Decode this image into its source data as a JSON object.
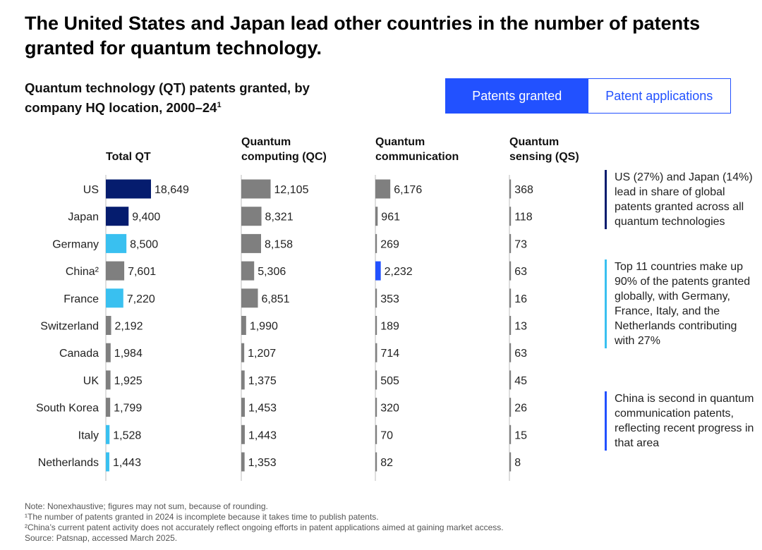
{
  "title": "The United States and Japan lead other countries in the number of patents granted for quantum technology.",
  "subtitle": "Quantum technology (QT) patents granted, by company HQ location, 2000–24",
  "subtitle_sup": "1",
  "toggle": {
    "active": "Patents granted",
    "inactive": "Patent applications"
  },
  "colors": {
    "dark_navy": "#051c6e",
    "light_blue": "#39c0f0",
    "blue": "#2251ff",
    "gray": "#7f7f7f",
    "toggle": "#2251ff"
  },
  "chart_data": {
    "type": "bar",
    "title": "Quantum technology (QT) patents granted, by company HQ location, 2000–24",
    "categories": [
      "US",
      "Japan",
      "Germany",
      "China",
      "France",
      "Switzerland",
      "Canada",
      "UK",
      "South Korea",
      "Italy",
      "Netherlands"
    ],
    "category_labels": [
      "US",
      "Japan",
      "Germany",
      "China²",
      "France",
      "Switzerland",
      "Canada",
      "UK",
      "South Korea",
      "Italy",
      "Netherlands"
    ],
    "series": [
      {
        "name": "Total QT",
        "values": [
          18649,
          9400,
          8500,
          7601,
          7220,
          2192,
          1984,
          1925,
          1799,
          1528,
          1443
        ],
        "labels": [
          "18,649",
          "9,400",
          "8,500",
          "7,601",
          "7,220",
          "2,192",
          "1,984",
          "1,925",
          "1,799",
          "1,528",
          "1,443"
        ],
        "colors": [
          "dark_navy",
          "dark_navy",
          "light_blue",
          "gray",
          "light_blue",
          "gray",
          "gray",
          "gray",
          "gray",
          "light_blue",
          "light_blue"
        ]
      },
      {
        "name": "Quantum computing (QC)",
        "values": [
          12105,
          8321,
          8158,
          5306,
          6851,
          1990,
          1207,
          1375,
          1453,
          1443,
          1353
        ],
        "labels": [
          "12,105",
          "8,321",
          "8,158",
          "5,306",
          "6,851",
          "1,990",
          "1,207",
          "1,375",
          "1,453",
          "1,443",
          "1,353"
        ],
        "colors": [
          "gray",
          "gray",
          "gray",
          "gray",
          "gray",
          "gray",
          "gray",
          "gray",
          "gray",
          "gray",
          "gray"
        ]
      },
      {
        "name": "Quantum communication",
        "values": [
          6176,
          961,
          269,
          2232,
          353,
          189,
          714,
          505,
          320,
          70,
          82
        ],
        "labels": [
          "6,176",
          "961",
          "269",
          "2,232",
          "353",
          "189",
          "714",
          "505",
          "320",
          "70",
          "82"
        ],
        "colors": [
          "gray",
          "gray",
          "gray",
          "blue",
          "gray",
          "gray",
          "gray",
          "gray",
          "gray",
          "gray",
          "gray"
        ]
      },
      {
        "name": "Quantum sensing (QS)",
        "values": [
          368,
          118,
          73,
          63,
          16,
          13,
          63,
          45,
          26,
          15,
          8
        ],
        "labels": [
          "368",
          "118",
          "73",
          "63",
          "16",
          "13",
          "63",
          "45",
          "26",
          "15",
          "8"
        ],
        "colors": [
          "gray",
          "gray",
          "gray",
          "gray",
          "gray",
          "gray",
          "gray",
          "gray",
          "gray",
          "gray",
          "gray"
        ]
      }
    ],
    "column_headers": [
      [
        "Total QT"
      ],
      [
        "Quantum",
        "computing (QC)"
      ],
      [
        "Quantum",
        "communication"
      ],
      [
        "Quantum",
        "sensing (QS)"
      ]
    ],
    "xlim": [
      0,
      18649
    ],
    "grid": false
  },
  "annotations": [
    "US (27%) and Japan (14%) lead in share of global patents granted across all quantum technologies",
    "Top 11 countries make up 90% of the patents granted globally, with Germany, France, Italy, and the Netherlands contributing with 27%",
    "China is second in quantum communication patents, reflecting recent progress in that area"
  ],
  "notes": [
    "Note: Nonexhaustive; figures may not sum, because of rounding.",
    "¹The number of patents granted in 2024 is incomplete because it takes time to publish patents.",
    "²China’s current patent activity does not accurately reflect ongoing efforts in patent applications aimed at gaining market access.",
    "Source: Patsnap, accessed March 2025."
  ]
}
